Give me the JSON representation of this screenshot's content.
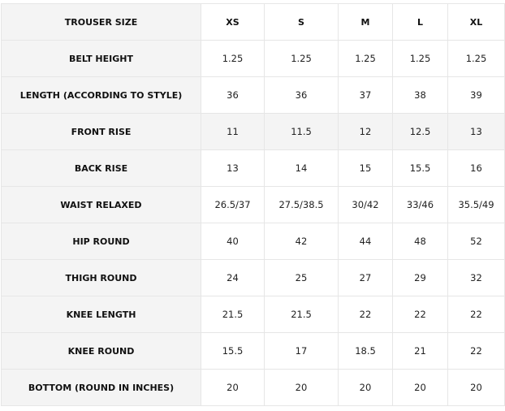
{
  "header": {
    "label": "TROUSER SIZE",
    "sizes": [
      "XS",
      "S",
      "M",
      "L",
      "XL"
    ]
  },
  "rows": [
    {
      "label": "BELT HEIGHT",
      "values": [
        "1.25",
        "1.25",
        "1.25",
        "1.25",
        "1.25"
      ]
    },
    {
      "label": "LENGTH (ACCORDING TO STYLE)",
      "values": [
        "36",
        "36",
        "37",
        "38",
        "39"
      ]
    },
    {
      "label": "FRONT RISE",
      "values": [
        "11",
        "11.5",
        "12",
        "12.5",
        "13"
      ],
      "shaded": true
    },
    {
      "label": "BACK RISE",
      "values": [
        "13",
        "14",
        "15",
        "15.5",
        "16"
      ]
    },
    {
      "label": "WAIST RELAXED",
      "values": [
        "26.5/37",
        "27.5/38.5",
        "30/42",
        "33/46",
        "35.5/49"
      ]
    },
    {
      "label": "HIP ROUND",
      "values": [
        "40",
        "42",
        "44",
        "48",
        "52"
      ]
    },
    {
      "label": "THIGH ROUND",
      "values": [
        "24",
        "25",
        "27",
        "29",
        "32"
      ]
    },
    {
      "label": "KNEE LENGTH",
      "values": [
        "21.5",
        "21.5",
        "22",
        "22",
        "22"
      ]
    },
    {
      "label": "KNEE ROUND",
      "values": [
        "15.5",
        "17",
        "18.5",
        "21",
        "22"
      ]
    },
    {
      "label": "BOTTOM (ROUND IN INCHES)",
      "values": [
        "20",
        "20",
        "20",
        "20",
        "20"
      ]
    }
  ]
}
